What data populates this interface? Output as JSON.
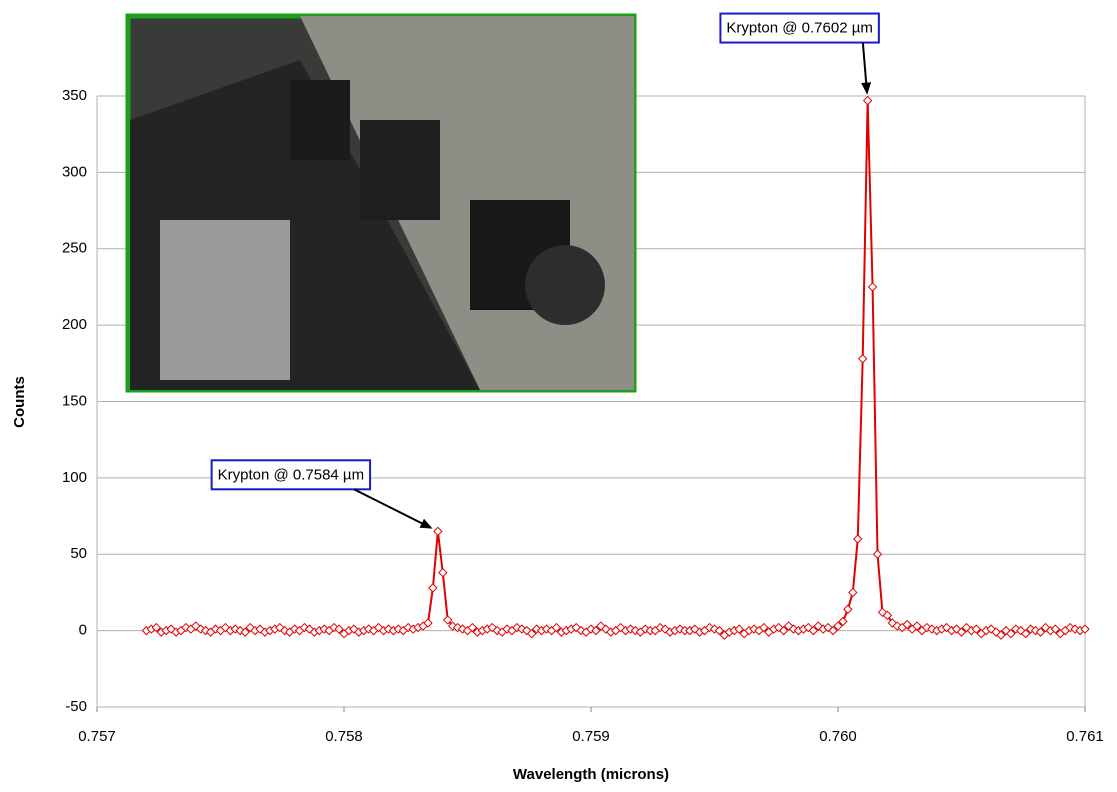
{
  "chart_data": {
    "type": "line",
    "x_label": "Wavelength (microns)",
    "y_label": "Counts",
    "xlim": [
      0.757,
      0.761
    ],
    "xticks": [
      0.757,
      0.758,
      0.759,
      {
        "value": 0.76,
        "label": "0.760"
      },
      0.761
    ],
    "ylim": [
      -50,
      350
    ],
    "yticks": [
      -50,
      0,
      50,
      100,
      150,
      200,
      250,
      300,
      350
    ],
    "grid": true,
    "x": [
      0.7572,
      0.75722,
      0.75724,
      0.75726,
      0.75728,
      0.7573,
      0.75732,
      0.75734,
      0.75736,
      0.75738,
      0.7574,
      0.75742,
      0.75744,
      0.75746,
      0.75748,
      0.7575,
      0.75752,
      0.75754,
      0.75756,
      0.75758,
      0.7576,
      0.75762,
      0.75764,
      0.75766,
      0.75768,
      0.7577,
      0.75772,
      0.75774,
      0.75776,
      0.75778,
      0.7578,
      0.75782,
      0.75784,
      0.75786,
      0.75788,
      0.7579,
      0.75792,
      0.75794,
      0.75796,
      0.75798,
      0.758,
      0.75802,
      0.75804,
      0.75806,
      0.75808,
      0.7581,
      0.75812,
      0.75814,
      0.75816,
      0.75818,
      0.7582,
      0.75822,
      0.75824,
      0.75826,
      0.75828,
      0.7583,
      0.75832,
      0.75834,
      0.75836,
      0.75838,
      0.7584,
      0.75842,
      0.75844,
      0.75846,
      0.75848,
      0.7585,
      0.75852,
      0.75854,
      0.75856,
      0.75858,
      0.7586,
      0.75862,
      0.75864,
      0.75866,
      0.75868,
      0.7587,
      0.75872,
      0.75874,
      0.75876,
      0.75878,
      0.7588,
      0.75882,
      0.75884,
      0.75886,
      0.75888,
      0.7589,
      0.75892,
      0.75894,
      0.75896,
      0.75898,
      0.759,
      0.75902,
      0.75904,
      0.75906,
      0.75908,
      0.7591,
      0.75912,
      0.75914,
      0.75916,
      0.75918,
      0.7592,
      0.75922,
      0.75924,
      0.75926,
      0.75928,
      0.7593,
      0.75932,
      0.75934,
      0.75936,
      0.75938,
      0.7594,
      0.75942,
      0.75944,
      0.75946,
      0.75948,
      0.7595,
      0.75952,
      0.75954,
      0.75956,
      0.75958,
      0.7596,
      0.75962,
      0.75964,
      0.75966,
      0.75968,
      0.7597,
      0.75972,
      0.75974,
      0.75976,
      0.75978,
      0.7598,
      0.75982,
      0.75984,
      0.75986,
      0.75988,
      0.7599,
      0.75992,
      0.75994,
      0.75996,
      0.75998,
      0.76,
      0.76002,
      0.76004,
      0.76006,
      0.76008,
      0.7601,
      0.76012,
      0.76014,
      0.76016,
      0.76018,
      0.7602,
      0.76022,
      0.76024,
      0.76026,
      0.76028,
      0.7603,
      0.76032,
      0.76034,
      0.76036,
      0.76038,
      0.7604,
      0.76042,
      0.76044,
      0.76046,
      0.76048,
      0.7605,
      0.76052,
      0.76054,
      0.76056,
      0.76058,
      0.7606,
      0.76062,
      0.76064,
      0.76066,
      0.76068,
      0.7607,
      0.76072,
      0.76074,
      0.76076,
      0.76078,
      0.7608,
      0.76082,
      0.76084,
      0.76086,
      0.76088,
      0.7609,
      0.76092,
      0.76094,
      0.76096,
      0.76098,
      0.761
    ],
    "series": [
      {
        "color": "#e00000",
        "values": [
          0,
          1,
          2,
          -1,
          0,
          1,
          -1,
          0,
          2,
          1,
          3,
          1,
          0,
          -1,
          1,
          0,
          2,
          0,
          1,
          0,
          -1,
          2,
          0,
          1,
          -1,
          0,
          1,
          2,
          0,
          -1,
          1,
          0,
          2,
          1,
          -1,
          0,
          1,
          0,
          2,
          1,
          -2,
          0,
          1,
          -1,
          0,
          1,
          0,
          2,
          0,
          1,
          0,
          1,
          0,
          2,
          1,
          2,
          3,
          5,
          28,
          65,
          38,
          7,
          3,
          2,
          1,
          0,
          2,
          -1,
          0,
          1,
          2,
          0,
          -1,
          1,
          0,
          2,
          1,
          0,
          -2,
          1,
          0,
          1,
          0,
          2,
          -1,
          0,
          1,
          2,
          0,
          -1,
          1,
          0,
          3,
          1,
          -1,
          0,
          2,
          0,
          1,
          0,
          -1,
          1,
          0,
          0,
          2,
          1,
          -1,
          0,
          1,
          0,
          0,
          1,
          -1,
          0,
          2,
          1,
          0,
          -3,
          -1,
          0,
          1,
          -2,
          0,
          1,
          0,
          2,
          -1,
          1,
          2,
          0,
          3,
          1,
          0,
          1,
          2,
          0,
          3,
          1,
          2,
          0,
          3,
          6,
          14,
          25,
          60,
          178,
          347,
          225,
          50,
          12,
          10,
          5,
          3,
          2,
          4,
          1,
          3,
          0,
          2,
          1,
          0,
          1,
          2,
          0,
          1,
          -1,
          2,
          0,
          1,
          -2,
          0,
          1,
          -1,
          -3,
          0,
          -2,
          1,
          0,
          -2,
          1,
          0,
          -1,
          2,
          0,
          1,
          -2,
          0,
          2,
          1,
          0,
          1
        ]
      }
    ],
    "annotations": [
      {
        "text": "Krypton @ 0.7602 µm",
        "x": 0.76012,
        "y": 347
      },
      {
        "text": "Krypton @ 0.7584 µm",
        "x": 0.75838,
        "y": 65
      }
    ]
  }
}
